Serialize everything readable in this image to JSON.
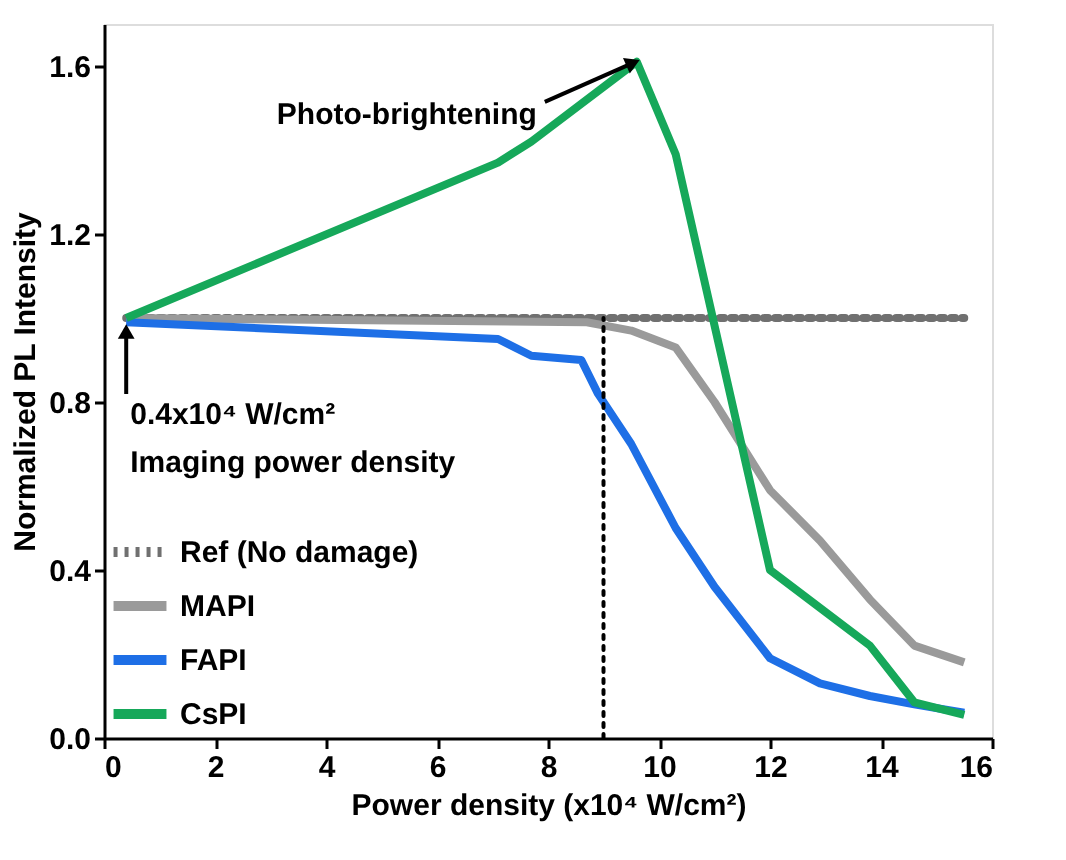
{
  "chart_data": {
    "type": "line",
    "xlabel": "Power density (x10⁴ W/cm²)",
    "ylabel": "Normalized PL Intensity",
    "xlim": [
      0,
      16
    ],
    "xticks": [
      0,
      2,
      4,
      6,
      8,
      10,
      12,
      14,
      16
    ],
    "ylim": [
      0,
      1.7
    ],
    "yticks": [
      {
        "value": 0,
        "label": "0.0"
      },
      {
        "value": 0.4,
        "label": "0.4"
      },
      {
        "value": 0.8,
        "label": "0.8"
      },
      {
        "value": 1.2,
        "label": "1.2"
      },
      {
        "value": 1.6,
        "label": "1.6"
      }
    ],
    "grid": false,
    "legend": "bottom left",
    "marker": "none",
    "series": [
      {
        "name": "Ref (No damage)",
        "color": "#707070",
        "line_style": "dotted",
        "x": [
          0.4,
          15.5
        ],
        "values": [
          1.0,
          1.0
        ]
      },
      {
        "name": "MAPI",
        "color": "#9a9a9a",
        "x": [
          0.4,
          8.7,
          9.5,
          10.3,
          11.0,
          12.0,
          12.9,
          13.8,
          14.6,
          15.5
        ],
        "values": [
          1.0,
          0.99,
          0.97,
          0.93,
          0.8,
          0.59,
          0.47,
          0.33,
          0.22,
          0.18
        ]
      },
      {
        "name": "FAPI",
        "color": "#1e6fe6",
        "x": [
          0.4,
          7.1,
          7.7,
          8.6,
          8.9,
          9.5,
          10.3,
          11.0,
          12.0,
          12.9,
          13.8,
          14.6,
          15.5
        ],
        "values": [
          0.99,
          0.95,
          0.91,
          0.9,
          0.82,
          0.7,
          0.5,
          0.36,
          0.19,
          0.13,
          0.1,
          0.08,
          0.06
        ]
      },
      {
        "name": "CsPI",
        "color": "#16a85a",
        "x": [
          0.4,
          7.1,
          7.7,
          9.6,
          10.3,
          12.0,
          13.8,
          14.6,
          15.5
        ],
        "values": [
          1.0,
          1.37,
          1.42,
          1.61,
          1.39,
          0.4,
          0.22,
          0.085,
          0.055
        ]
      },
      {
        "color": "#000000",
        "line_style": "dotted",
        "x": [
          9.0,
          9.0
        ],
        "values": [
          0,
          1.0
        ]
      }
    ],
    "annotations": [
      {
        "text": "Photo-brightening",
        "x": 9.6,
        "y": 1.61
      },
      {
        "text": "0.4x10⁴ W/cm²\nImaging power density",
        "x": 0.4,
        "y": 1.0
      }
    ]
  }
}
